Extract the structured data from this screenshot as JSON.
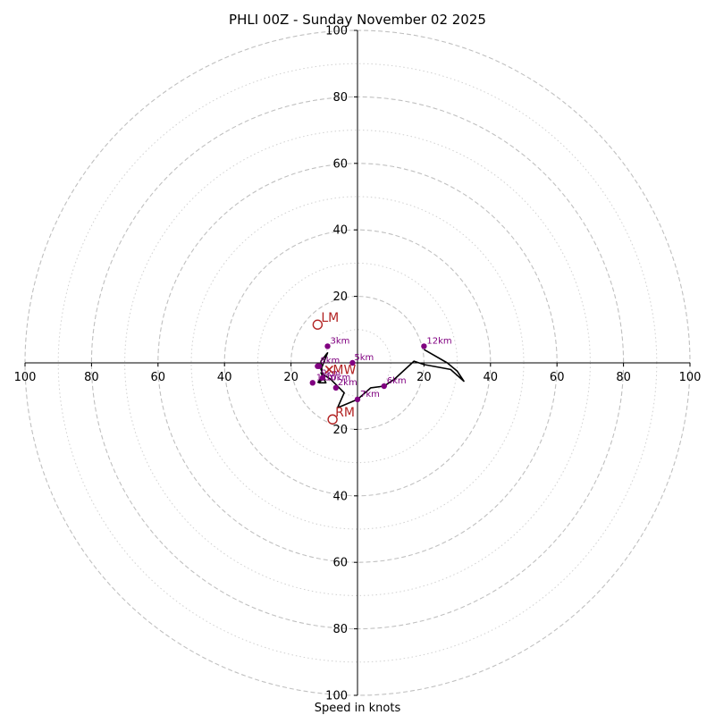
{
  "chart_data": {
    "type": "hodograph",
    "title": "PHLI 00Z - Sunday November 02 2025",
    "xlabel": "Speed in knots",
    "range": [
      -100,
      100
    ],
    "ring_major": [
      20,
      40,
      60,
      80,
      100
    ],
    "ring_minor": [
      10,
      30,
      50,
      70,
      90
    ],
    "x_tick_labels": [
      "100",
      "80",
      "60",
      "40",
      "20",
      "20",
      "40",
      "60",
      "80",
      "100"
    ],
    "y_tick_labels": [
      "100",
      "80",
      "60",
      "40",
      "20",
      "20",
      "40",
      "60",
      "80",
      "100"
    ],
    "x_tick_values": [
      -100,
      -80,
      -60,
      -40,
      -20,
      20,
      40,
      60,
      80,
      100
    ],
    "y_tick_values": [
      100,
      80,
      60,
      40,
      20,
      -20,
      -40,
      -60,
      -80,
      -100
    ],
    "trace": [
      [
        -12,
        -6
      ],
      [
        -10.5,
        -4
      ],
      [
        -11,
        0.5
      ],
      [
        -9,
        3
      ],
      [
        -11,
        -2
      ],
      [
        -10,
        -4
      ],
      [
        -11.5,
        -6
      ],
      [
        -9.5,
        -6
      ],
      [
        -11,
        -3
      ],
      [
        -8,
        -5
      ],
      [
        -4,
        -9
      ],
      [
        -6,
        -13.5
      ],
      [
        0,
        -11
      ],
      [
        4,
        -7.5
      ],
      [
        8,
        -7
      ],
      [
        11,
        -5
      ],
      [
        17,
        0.5
      ],
      [
        20,
        -0.5
      ],
      [
        28,
        -2
      ],
      [
        32,
        -5.5
      ],
      [
        30,
        -2.5
      ],
      [
        27,
        0
      ],
      [
        20,
        4
      ]
    ],
    "heights": [
      {
        "label": "1km",
        "u": -13.5,
        "v": -6,
        "dx": 4,
        "dy": -3
      },
      {
        "label": "2km",
        "u": -6.5,
        "v": -7.5,
        "dx": 2,
        "dy": -3
      },
      {
        "label": "3km",
        "u": -9,
        "v": 5,
        "dx": 3,
        "dy": -3
      },
      {
        "label": "5km",
        "u": -1.5,
        "v": 0,
        "dx": 2,
        "dy": -3
      },
      {
        "label": "6km",
        "u": 8,
        "v": -7,
        "dx": 3,
        "dy": -3
      },
      {
        "label": "7km",
        "u": 0,
        "v": -11,
        "dx": 3,
        "dy": -3
      },
      {
        "label": "8km",
        "u": -12,
        "v": -1,
        "dx": 3,
        "dy": -3
      },
      {
        "label": "9km",
        "u": -11.5,
        "v": -1,
        "dx": 2,
        "dy": 11
      },
      {
        "label": "10km",
        "u": -10.5,
        "v": -4.5,
        "dx": 3,
        "dy": 3
      },
      {
        "label": "12km",
        "u": 20,
        "v": 5,
        "dx": 3,
        "dy": -3
      }
    ],
    "storm_motion": {
      "mean_label": "MW",
      "mean": [
        -8.5,
        -2
      ],
      "lm_label": "LM",
      "lm": [
        -12,
        11.5
      ],
      "rm_label": "RM",
      "rm": [
        -7.5,
        -17
      ]
    },
    "colors": {
      "ring_major": "#c0c0c0",
      "ring_minor": "#d0d0d0",
      "trace": "#000000",
      "height_marker": "#800080",
      "storm_motion": "#b22222"
    }
  }
}
